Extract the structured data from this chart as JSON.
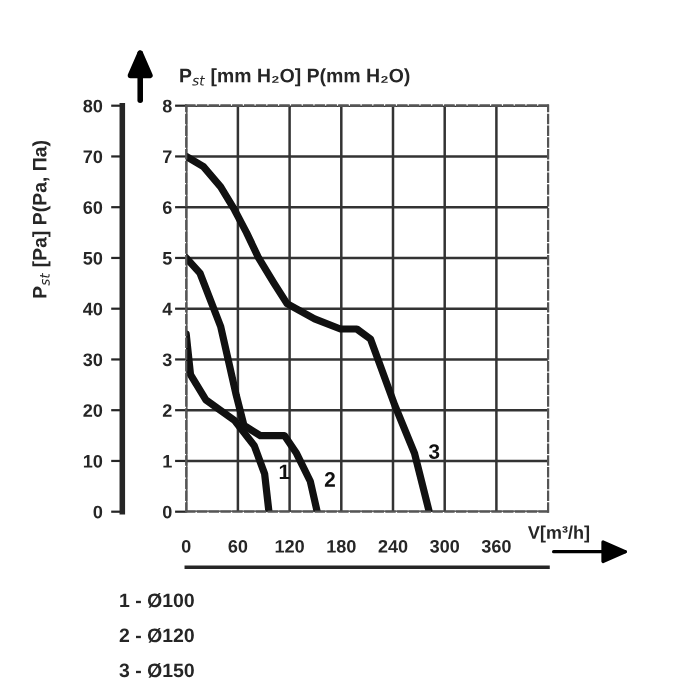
{
  "chart_data": {
    "type": "line",
    "xlabel": "V[m³/h]",
    "ylabel": "P$_{st}$ [Pa] P(Pa, Па)",
    "y2label": "P$_{st}$ [mm H₂O] P(mm H₂O)",
    "xlim": [
      0,
      420
    ],
    "xticks": [
      0,
      60,
      120,
      180,
      240,
      300,
      360
    ],
    "ylim": [
      0,
      80
    ],
    "yticks": [
      0,
      10,
      20,
      30,
      40,
      50,
      60,
      70,
      80
    ],
    "y2lim": [
      0,
      8
    ],
    "y2ticks": [
      0,
      1,
      2,
      3,
      4,
      5,
      6,
      7,
      8
    ],
    "grid": true,
    "legend": false,
    "line_style": "solid",
    "marker": "none",
    "series": [
      {
        "name": "1",
        "color": "#111111",
        "x": [
          0,
          5,
          23,
          56,
          79,
          91,
          96
        ],
        "values": [
          35,
          27,
          22,
          18,
          13,
          7.5,
          0
        ]
      },
      {
        "name": "2",
        "color": "#111111",
        "x": [
          0,
          16,
          40,
          58,
          67,
          86,
          114,
          128,
          144,
          152
        ],
        "values": [
          50,
          47,
          36.5,
          23,
          17,
          15,
          15,
          11.5,
          6,
          0
        ]
      },
      {
        "name": "3",
        "color": "#111111",
        "x": [
          0,
          20,
          40,
          56,
          70,
          84,
          102,
          117,
          149,
          179,
          198,
          214,
          242,
          265,
          282
        ],
        "values": [
          70,
          68,
          64,
          59.5,
          55,
          50,
          45,
          41,
          38,
          36,
          36,
          34,
          21,
          11.5,
          0
        ]
      }
    ],
    "annotations": [
      "1 - Ø100",
      "2 - Ø120",
      "3 - Ø150"
    ]
  }
}
